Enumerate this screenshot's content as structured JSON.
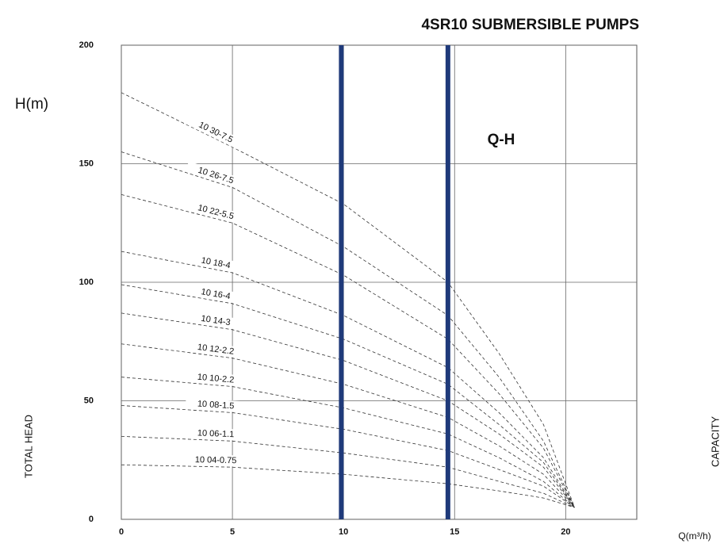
{
  "chart_data": {
    "type": "line",
    "title": "4SR10 SUBMERSIBLE PUMPS",
    "y_unit_label": "H(m)",
    "curve_label": "Q-H",
    "ylabel": "TOTAL HEAD",
    "right_label": "CAPACITY",
    "xlabel": "Q(m³/h)",
    "x": [
      0,
      5,
      10,
      14.7,
      17,
      19,
      20.4
    ],
    "xlim": [
      0,
      23.2
    ],
    "xticks": [
      0,
      5,
      10,
      15,
      20
    ],
    "ylim": [
      0,
      200
    ],
    "yticks": [
      0,
      50,
      100,
      150,
      200
    ],
    "grid": true,
    "line_color": "#333333",
    "reference_lines": [
      {
        "x": 9.9,
        "color": "#1f3a7a"
      },
      {
        "x": 14.7,
        "color": "#1f3a7a"
      }
    ],
    "series": [
      {
        "name": "10 30-7.5",
        "values": [
          180,
          157,
          133,
          100,
          70,
          40,
          5
        ]
      },
      {
        "name": "10 26-7.5",
        "values": [
          155,
          140,
          115,
          86,
          60,
          33,
          5
        ]
      },
      {
        "name": "10 22-5.5",
        "values": [
          137,
          125,
          103,
          76,
          53,
          30,
          5
        ]
      },
      {
        "name": "10 18-4",
        "values": [
          113,
          104,
          86,
          64,
          45,
          26,
          5
        ]
      },
      {
        "name": "10 16-4",
        "values": [
          99,
          91,
          76,
          57,
          40,
          24,
          5
        ]
      },
      {
        "name": "10 14-3",
        "values": [
          87,
          80,
          67,
          50,
          36,
          22,
          5
        ]
      },
      {
        "name": "10 12-2.2",
        "values": [
          74,
          68,
          57,
          43,
          31,
          19,
          5
        ]
      },
      {
        "name": "10 10-2.2",
        "values": [
          60,
          56,
          47,
          36,
          26,
          16,
          5
        ]
      },
      {
        "name": "10 08-1.5",
        "values": [
          48,
          45,
          38,
          29,
          21,
          14,
          5
        ]
      },
      {
        "name": "10 06-1.1",
        "values": [
          35,
          33,
          28,
          22,
          16,
          11,
          5
        ]
      },
      {
        "name": "10 04-0.75",
        "values": [
          23,
          22,
          19,
          15,
          12,
          9,
          5
        ]
      }
    ]
  }
}
